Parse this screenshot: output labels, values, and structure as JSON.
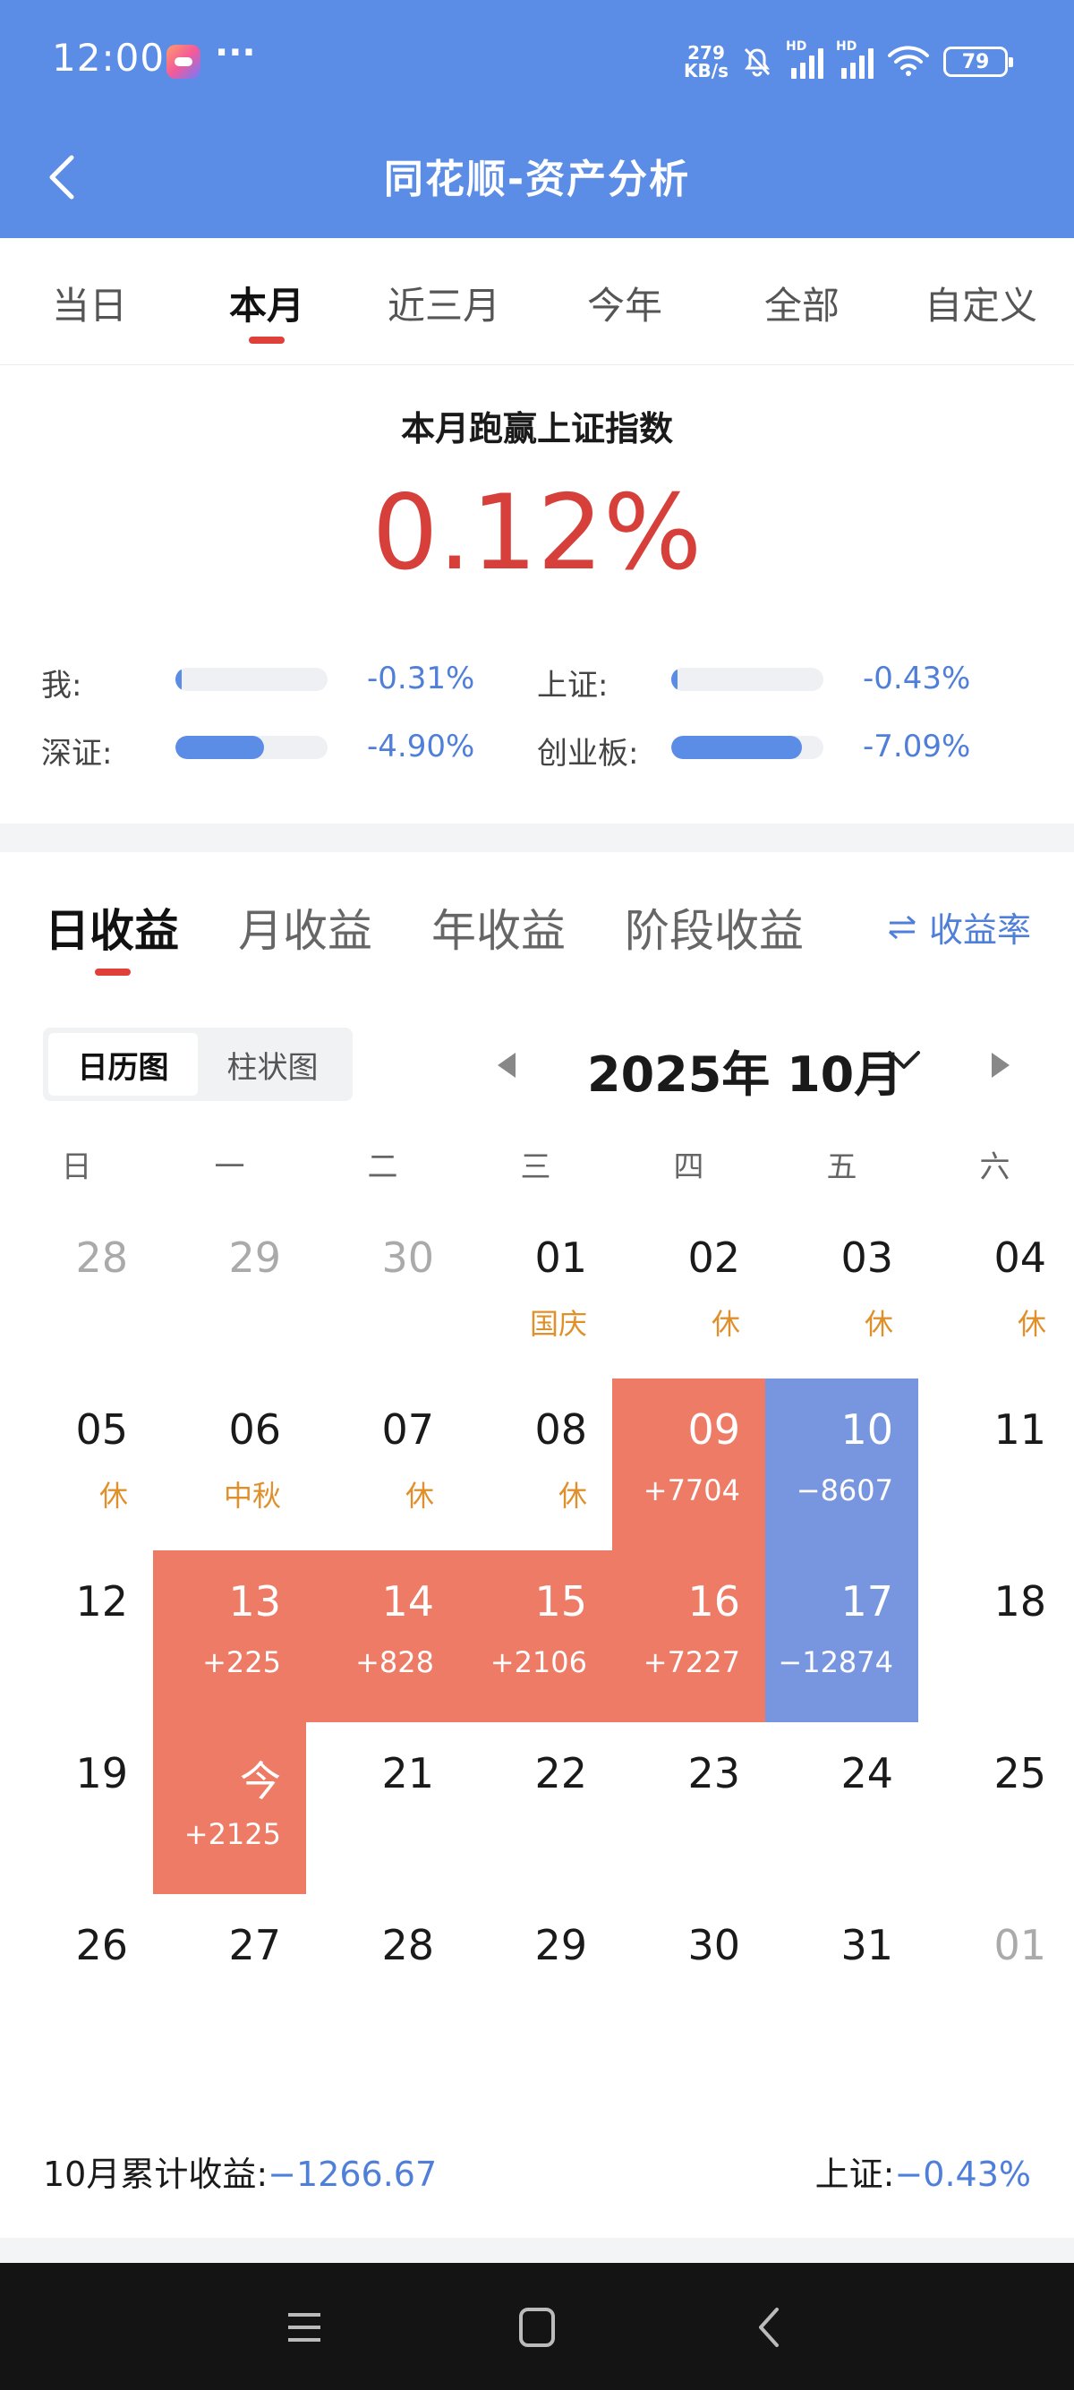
{
  "status_bar": {
    "time": "12:00",
    "more": "···",
    "speed_value": "279",
    "speed_unit": "KB/s",
    "hd1": "HD",
    "hd2": "HD",
    "battery": "79"
  },
  "nav": {
    "title": "同花顺-资产分析"
  },
  "period_tabs": [
    {
      "label": "当日"
    },
    {
      "label": "本月"
    },
    {
      "label": "近三月"
    },
    {
      "label": "今年"
    },
    {
      "label": "全部"
    },
    {
      "label": "自定义"
    }
  ],
  "summary": {
    "title": "本月跑赢上证指数",
    "value": "0.12%",
    "comparisons": [
      {
        "label": "我:",
        "value": "-0.31%",
        "level": 0.04
      },
      {
        "label": "上证:",
        "value": "-0.43%",
        "level": 0.04
      },
      {
        "label": "深证:",
        "value": "-4.90%",
        "level": 0.58
      },
      {
        "label": "创业板:",
        "value": "-7.09%",
        "level": 0.86
      }
    ]
  },
  "returns": {
    "tabs": [
      {
        "label": "日收益"
      },
      {
        "label": "月收益"
      },
      {
        "label": "年收益"
      },
      {
        "label": "阶段收益"
      }
    ],
    "rate_toggle": "收益率",
    "views": [
      "日历图",
      "柱状图"
    ],
    "month": "2025年 10月",
    "weekdays": [
      "日",
      "一",
      "二",
      "三",
      "四",
      "五",
      "六"
    ],
    "days": [
      {
        "day": "28",
        "sub": "",
        "state": "dim"
      },
      {
        "day": "29",
        "sub": "",
        "state": "dim"
      },
      {
        "day": "30",
        "sub": "",
        "state": "dim"
      },
      {
        "day": "01",
        "sub": "国庆",
        "state": "holiday"
      },
      {
        "day": "02",
        "sub": "休",
        "state": "holiday"
      },
      {
        "day": "03",
        "sub": "休",
        "state": "holiday"
      },
      {
        "day": "04",
        "sub": "休",
        "state": "holiday"
      },
      {
        "day": "05",
        "sub": "休",
        "state": "holiday"
      },
      {
        "day": "06",
        "sub": "中秋",
        "state": "holiday"
      },
      {
        "day": "07",
        "sub": "休",
        "state": "holiday"
      },
      {
        "day": "08",
        "sub": "休",
        "state": "holiday"
      },
      {
        "day": "09",
        "sub": "+7704",
        "state": "gain"
      },
      {
        "day": "10",
        "sub": "−8607",
        "state": "loss"
      },
      {
        "day": "11",
        "sub": "",
        "state": "normal"
      },
      {
        "day": "12",
        "sub": "",
        "state": "normal"
      },
      {
        "day": "13",
        "sub": "+225",
        "state": "gain"
      },
      {
        "day": "14",
        "sub": "+828",
        "state": "gain"
      },
      {
        "day": "15",
        "sub": "+2106",
        "state": "gain"
      },
      {
        "day": "16",
        "sub": "+7227",
        "state": "gain"
      },
      {
        "day": "17",
        "sub": "−12874",
        "state": "loss"
      },
      {
        "day": "18",
        "sub": "",
        "state": "normal"
      },
      {
        "day": "19",
        "sub": "",
        "state": "normal"
      },
      {
        "day": "今",
        "sub": "+2125",
        "state": "gain"
      },
      {
        "day": "21",
        "sub": "",
        "state": "normal"
      },
      {
        "day": "22",
        "sub": "",
        "state": "normal"
      },
      {
        "day": "23",
        "sub": "",
        "state": "normal"
      },
      {
        "day": "24",
        "sub": "",
        "state": "normal"
      },
      {
        "day": "25",
        "sub": "",
        "state": "normal"
      },
      {
        "day": "26",
        "sub": "",
        "state": "normal"
      },
      {
        "day": "27",
        "sub": "",
        "state": "normal"
      },
      {
        "day": "28",
        "sub": "",
        "state": "normal"
      },
      {
        "day": "29",
        "sub": "",
        "state": "normal"
      },
      {
        "day": "30",
        "sub": "",
        "state": "normal"
      },
      {
        "day": "31",
        "sub": "",
        "state": "normal"
      },
      {
        "day": "01",
        "sub": "",
        "state": "dim"
      }
    ],
    "total_label": "10月累计收益:",
    "total_value": "−1266.67",
    "index_label": "上证:",
    "index_value": "−0.43%"
  },
  "colors": {
    "header": "#5b8de6",
    "gain": "#ee7b65",
    "loss": "#7896e0",
    "accent_red": "#d7403a",
    "accent_blue": "#4f7fd9",
    "holiday": "#e0902a"
  },
  "icons": {
    "back": "chevron-left-icon",
    "bell": "bell-off-icon",
    "wifi": "wifi-icon",
    "battery": "battery-icon",
    "swap": "swap-arrows-icon",
    "dropdown": "chevron-down-icon",
    "menu": "menu-icon",
    "home": "home-square-icon",
    "sys_back": "back-chevron-icon"
  }
}
